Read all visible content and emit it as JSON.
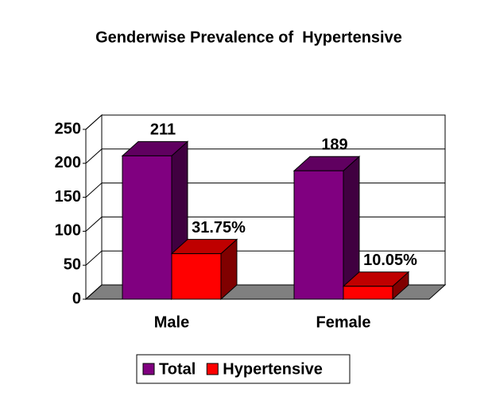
{
  "chart_data": {
    "type": "bar3d",
    "title": "Genderwise Prevalence of  Hypertensive",
    "categories": [
      "Male",
      "Female"
    ],
    "series": [
      {
        "name": "Total",
        "color": "#800080",
        "values": [
          211,
          189
        ]
      },
      {
        "name": "Hypertensive",
        "color": "#ff0000",
        "values": [
          67,
          19
        ]
      }
    ],
    "annotations": [
      "31.75%",
      "10.05%"
    ],
    "ylim": [
      0,
      250
    ],
    "yticks": [
      0,
      50,
      100,
      150,
      200,
      250
    ],
    "grid": true,
    "legend": "bottom"
  }
}
